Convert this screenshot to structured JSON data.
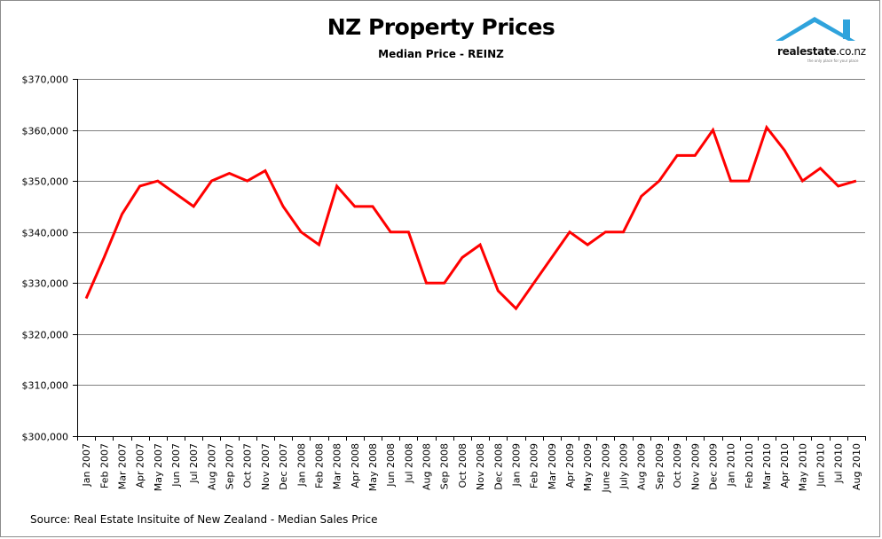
{
  "logo": {
    "name_bold": "realestate",
    "name_rest": ".co.nz",
    "tagline": "the only place for your place"
  },
  "footer": {
    "source": "Source: Real Estate Insituite of New Zealand - Median Sales Price"
  },
  "colors": {
    "line": "#ff0000",
    "grid": "#7f7f7f",
    "logo_accent": "#2fa3dc"
  },
  "chart_data": {
    "type": "line",
    "title": "NZ Property Prices",
    "subtitle": "Median Price - REINZ",
    "xlabel": "",
    "ylabel": "",
    "ylim": [
      300000,
      370000
    ],
    "yticks": [
      300000,
      310000,
      320000,
      330000,
      340000,
      350000,
      360000,
      370000
    ],
    "ytick_labels": [
      "$300,000",
      "$310,000",
      "$320,000",
      "$330,000",
      "$340,000",
      "$350,000",
      "$360,000",
      "$370,000"
    ],
    "grid": "horizontal",
    "legend": "none",
    "categories": [
      "Jan 2007",
      "Feb 2007",
      "Mar 2007",
      "Apr 2007",
      "May 2007",
      "Jun 2007",
      "Jul 2007",
      "Aug 2007",
      "Sep 2007",
      "Oct 2007",
      "Nov 2007",
      "Dec 2007",
      "Jan 2008",
      "Feb 2008",
      "Mar 2008",
      "Apr 2008",
      "May 2008",
      "Jun 2008",
      "Jul 2008",
      "Aug 2008",
      "Sep 2008",
      "Oct 2008",
      "Nov 2008",
      "Dec 2008",
      "Jan 2009",
      "Feb 2009",
      "Mar 2009",
      "Apr 2009",
      "May 2009",
      "June 2009",
      "July 2009",
      "Aug 2009",
      "Sep 2009",
      "Oct 2009",
      "Nov 2009",
      "Dec 2009",
      "Jan 2010",
      "Feb 2010",
      "Mar 2010",
      "Apr 2010",
      "May 2010",
      "Jun 2010",
      "Jul 2010",
      "Aug 2010"
    ],
    "series": [
      {
        "values": [
          327000,
          335000,
          343500,
          349000,
          350000,
          347500,
          345000,
          350000,
          351500,
          350000,
          352000,
          345000,
          340000,
          337500,
          349000,
          345000,
          345000,
          340000,
          340000,
          330000,
          330000,
          335000,
          337500,
          328500,
          325000,
          330000,
          335000,
          340000,
          337500,
          340000,
          340000,
          347000,
          350000,
          355000,
          355000,
          360000,
          350000,
          350000,
          360500,
          356000,
          350000,
          352500,
          349000,
          350000
        ]
      }
    ]
  }
}
